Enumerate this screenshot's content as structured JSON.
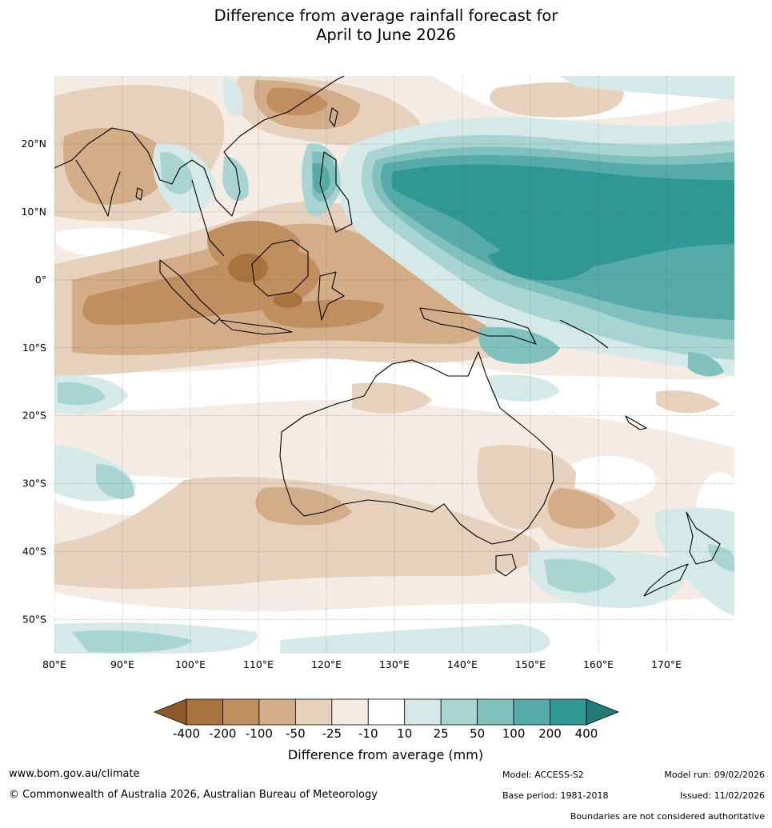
{
  "title": {
    "line1": "Difference from average rainfall forecast for",
    "line2": "April to June 2026"
  },
  "map": {
    "lon_range": [
      80,
      180
    ],
    "lat_range": [
      -55,
      30
    ],
    "lat_labels": [
      "20°N",
      "10°N",
      "0°",
      "10°S",
      "20°S",
      "30°S",
      "40°S",
      "50°S"
    ],
    "lat_values": [
      20,
      10,
      0,
      -10,
      -20,
      -30,
      -40,
      -50
    ],
    "lon_labels": [
      "80°E",
      "90°E",
      "100°E",
      "110°E",
      "120°E",
      "130°E",
      "140°E",
      "150°E",
      "160°E",
      "170°E"
    ],
    "lon_values": [
      80,
      90,
      100,
      110,
      120,
      130,
      140,
      150,
      160,
      170
    ],
    "colors": {
      "below_400": "#8f5a2a",
      "m400_m200": "#a8733e",
      "m200_m100": "#c08f5f",
      "m100_m50": "#d2ad87",
      "m50_m25": "#e6d1bd",
      "m25_m10": "#f4ebe4",
      "m10_10": "#ffffff",
      "p10_25": "#d5eae8",
      "p25_50": "#a8d5d2",
      "p50_100": "#80c0bd",
      "p100_200": "#56aaa7",
      "p200_400": "#2f9893",
      "above_400": "#237a76"
    }
  },
  "colorbar": {
    "ticks": [
      "-400",
      "-200",
      "-100",
      "-50",
      "-25",
      "-10",
      "10",
      "25",
      "50",
      "100",
      "200",
      "400"
    ],
    "label": "Difference from average (mm)"
  },
  "footer": {
    "website": "www.bom.gov.au/climate",
    "copyright": "© Commonwealth of Australia 2026, Australian Bureau of Meteorology",
    "model": "Model: ACCESS-S2",
    "base_period": "Base period: 1981-2018",
    "model_run": "Model run: 09/02/2026",
    "issued": "Issued: 11/02/2026",
    "boundaries": "Boundaries are not considered authoritative"
  }
}
